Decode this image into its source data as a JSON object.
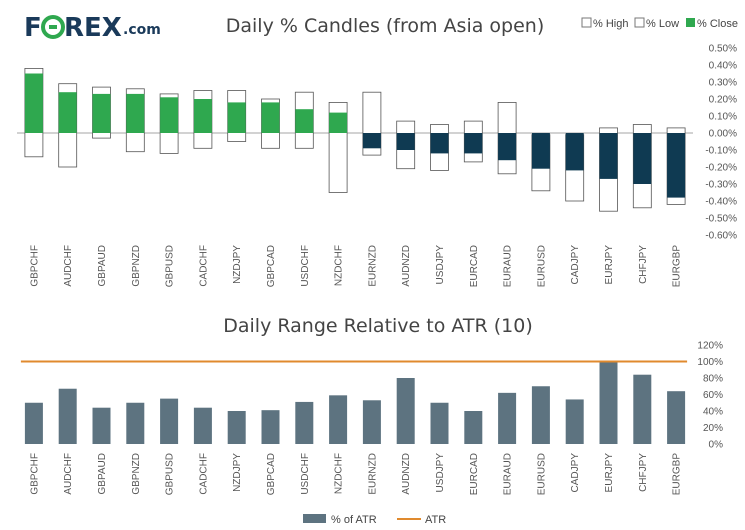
{
  "brand": {
    "logo_part1": "F",
    "logo_part2": "REX",
    "logo_suffix": ".com",
    "logo_color": "#1a3a5a",
    "accent_color": "#2fa84f"
  },
  "colors": {
    "close_up": "#2fa84f",
    "close_down": "#0f3a52",
    "candle_outline": "#555555",
    "atr_bar": "#5d7380",
    "atr_line": "#e08a2e",
    "zero_line": "#888888"
  },
  "chart_data": [
    {
      "type": "candlestick",
      "title": "Daily % Candles (from Asia open)",
      "legend": [
        "% High",
        "% Low",
        "% Close"
      ],
      "y_ticks": [
        "0.50%",
        "0.40%",
        "0.30%",
        "0.20%",
        "0.10%",
        "0.00%",
        "-0.10%",
        "-0.20%",
        "-0.30%",
        "-0.40%",
        "-0.50%",
        "-0.60%"
      ],
      "ylim": [
        -0.6,
        0.5
      ],
      "categories": [
        "GBPCHF",
        "AUDCHF",
        "GBPAUD",
        "GBPNZD",
        "GBPUSD",
        "CADCHF",
        "NZDJPY",
        "GBPCAD",
        "USDCHF",
        "NZDCHF",
        "EURNZD",
        "AUDNZD",
        "USDJPY",
        "EURCAD",
        "EURAUD",
        "EURUSD",
        "CADJPY",
        "EURJPY",
        "CHFJPY",
        "EURGBP"
      ],
      "high": [
        0.38,
        0.29,
        0.27,
        0.26,
        0.23,
        0.25,
        0.25,
        0.2,
        0.24,
        0.18,
        0.24,
        0.07,
        0.05,
        0.07,
        0.18,
        -0.01,
        -0.01,
        0.03,
        0.05,
        0.03
      ],
      "low": [
        -0.14,
        -0.2,
        -0.03,
        -0.11,
        -0.12,
        -0.09,
        -0.05,
        -0.09,
        -0.09,
        -0.35,
        -0.13,
        -0.21,
        -0.22,
        -0.17,
        -0.24,
        -0.34,
        -0.4,
        -0.46,
        -0.44,
        -0.42
      ],
      "close": [
        0.35,
        0.24,
        0.23,
        0.23,
        0.21,
        0.2,
        0.18,
        0.18,
        0.14,
        0.12,
        -0.09,
        -0.1,
        -0.12,
        -0.12,
        -0.16,
        -0.21,
        -0.22,
        -0.27,
        -0.3,
        -0.38
      ]
    },
    {
      "type": "bar",
      "title": "Daily Range Relative to ATR (10)",
      "legend": [
        "% of ATR",
        "ATR"
      ],
      "y_ticks": [
        "120%",
        "100%",
        "80%",
        "60%",
        "40%",
        "20%",
        "0%"
      ],
      "ylim": [
        0,
        120
      ],
      "atr_level": 100,
      "categories": [
        "GBPCHF",
        "AUDCHF",
        "GBPAUD",
        "GBPNZD",
        "GBPUSD",
        "CADCHF",
        "NZDJPY",
        "GBPCAD",
        "USDCHF",
        "NZDCHF",
        "EURNZD",
        "AUDNZD",
        "USDJPY",
        "EURCAD",
        "EURAUD",
        "EURUSD",
        "CADJPY",
        "EURJPY",
        "CHFJPY",
        "EURGBP"
      ],
      "values": [
        50,
        67,
        44,
        50,
        55,
        44,
        40,
        41,
        51,
        59,
        53,
        80,
        50,
        40,
        62,
        70,
        54,
        99,
        84,
        64
      ]
    }
  ]
}
